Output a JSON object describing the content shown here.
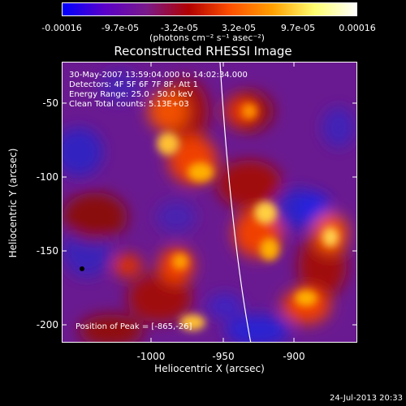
{
  "colorbar": {
    "tick_labels": [
      "-0.00016",
      "-9.7e-05",
      "-3.2e-05",
      "3.2e-05",
      "9.7e-05",
      "0.00016"
    ],
    "units": "(photons cm⁻² s⁻¹ asec⁻²)",
    "colors": [
      "#0000ff",
      "#5a00c8",
      "#7a1a8a",
      "#b00000",
      "#ff5000",
      "#ffa000",
      "#ffff70",
      "#ffffff"
    ]
  },
  "plot": {
    "title": "Reconstructed RHESSI Image",
    "annotations": {
      "line1": "30-May-2007 13:59:04.000 to 14:02:34.000",
      "line2": "Detectors: 4F 5F 6F 7F 8F, Att 1",
      "line3": "Energy Range: 25.0 - 50.0 keV",
      "line4": "Clean     Total counts: 5.13E+03",
      "peak": "Position of Peak = [-865,-26]"
    },
    "x_label": "Heliocentric X (arcsec)",
    "y_label": "Heliocentric Y (arcsec)",
    "x_ticks": [
      "-1000",
      "-950",
      "-900"
    ],
    "y_ticks": [
      "-50",
      "-100",
      "-150",
      "-200"
    ]
  },
  "timestamp": "24-Jul-2013 20:33"
}
